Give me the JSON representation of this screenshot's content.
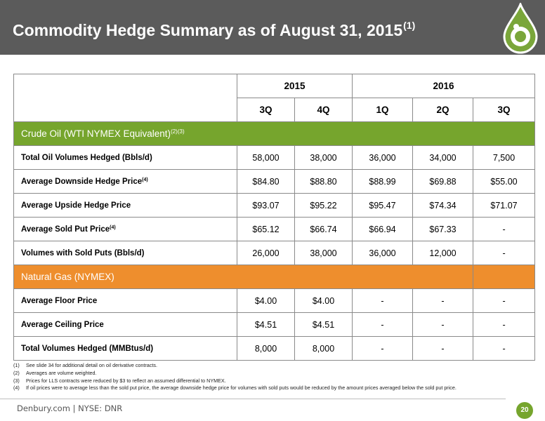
{
  "slide": {
    "title": "Commodity Hedge Summary as of August 31, 2015",
    "title_superscript": "(1)"
  },
  "colors": {
    "header_bg": "#5b5b5b",
    "oil_section": "#76a52d",
    "gas_section": "#ee8e2d",
    "brand_green": "#76a52d"
  },
  "table": {
    "years": [
      "2015",
      "2016"
    ],
    "quarters": [
      "3Q",
      "4Q",
      "1Q",
      "2Q",
      "3Q"
    ],
    "oil_section": {
      "title": "Crude Oil (WTI NYMEX Equivalent)",
      "title_superscript": "(2)(3)",
      "rows": [
        {
          "label": "Total Oil Volumes Hedged (Bbls/d)",
          "sup": "",
          "values": [
            "58,000",
            "38,000",
            "36,000",
            "34,000",
            "7,500"
          ]
        },
        {
          "label": "Average Downside Hedge Price",
          "sup": "(4)",
          "values": [
            "$84.80",
            "$88.80",
            "$88.99",
            "$69.88",
            "$55.00"
          ]
        },
        {
          "label": "Average Upside Hedge Price",
          "sup": "",
          "values": [
            "$93.07",
            "$95.22",
            "$95.47",
            "$74.34",
            "$71.07"
          ]
        },
        {
          "label": "Average Sold Put Price",
          "sup": "(4)",
          "values": [
            "$65.12",
            "$66.74",
            "$66.94",
            "$67.33",
            "-"
          ]
        },
        {
          "label": "Volumes with Sold Puts (Bbls/d)",
          "sup": "",
          "values": [
            "26,000",
            "38,000",
            "36,000",
            "12,000",
            "-"
          ]
        }
      ]
    },
    "gas_section": {
      "title": "Natural Gas (NYMEX)",
      "rows": [
        {
          "label": "Average Floor Price",
          "sup": "",
          "values": [
            "$4.00",
            "$4.00",
            "-",
            "-",
            "-"
          ]
        },
        {
          "label": "Average Ceiling Price",
          "sup": "",
          "values": [
            "$4.51",
            "$4.51",
            "-",
            "-",
            "-"
          ]
        },
        {
          "label": "Total Volumes Hedged (MMBtus/d)",
          "sup": "",
          "values": [
            "8,000",
            "8,000",
            "-",
            "-",
            "-"
          ]
        }
      ]
    }
  },
  "footnotes": [
    {
      "num": "(1)",
      "text": "See slide 34 for additional detail on oil derivative contracts."
    },
    {
      "num": "(2)",
      "text": "Averages are volume weighted."
    },
    {
      "num": "(3)",
      "text": "Prices for LLS contracts were reduced by $3 to reflect an assumed differential to NYMEX."
    },
    {
      "num": "(4)",
      "text": "If oil prices were to average less than the sold put price, the average downside hedge price for volumes with sold puts would be reduced by the amount prices averaged below the sold put price."
    }
  ],
  "footer": {
    "text": "Denbury.com | NYSE: DNR",
    "page_number": "20"
  },
  "icons": {
    "logo": "oil-drop-logo-icon"
  }
}
